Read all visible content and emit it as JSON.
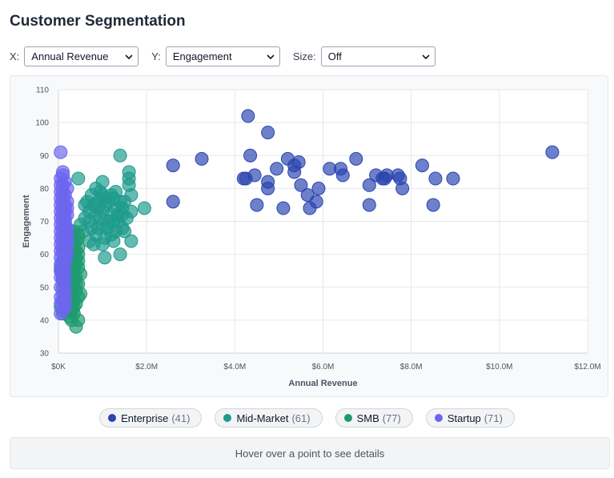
{
  "page": {
    "title": "Customer Segmentation"
  },
  "controls": {
    "x": {
      "label": "X:",
      "value": "Annual Revenue"
    },
    "y": {
      "label": "Y:",
      "value": "Engagement"
    },
    "size": {
      "label": "Size:",
      "value": "Off"
    }
  },
  "details": {
    "text": "Hover over a point to see details"
  },
  "colors": {
    "enterprise": "#2a44b0",
    "mid_market": "#1d9b8c",
    "smb": "#1e9b6e",
    "startup": "#6d65ef"
  },
  "legend": [
    {
      "name": "Enterprise",
      "count": "(41)",
      "color": "#2a44b0"
    },
    {
      "name": "Mid-Market",
      "count": "(61)",
      "color": "#1d9b8c"
    },
    {
      "name": "SMB",
      "count": "(77)",
      "color": "#1e9b6e"
    },
    {
      "name": "Startup",
      "count": "(71)",
      "color": "#6d65ef"
    }
  ],
  "chart_data": {
    "type": "scatter",
    "title": "",
    "xlabel": "Annual Revenue",
    "ylabel": "Engagement",
    "xlim": [
      0,
      12
    ],
    "ylim": [
      30,
      110
    ],
    "x_unit": "$M",
    "xticks": [
      "$0K",
      "$2.0M",
      "$4.0M",
      "$6.0M",
      "$8.0M",
      "$10.0M",
      "$12.0M"
    ],
    "yticks": [
      "30",
      "40",
      "50",
      "60",
      "70",
      "80",
      "90",
      "100",
      "110"
    ],
    "grid": true,
    "series": [
      {
        "name": "Enterprise",
        "color": "#2a44b0",
        "points": [
          [
            4.3,
            102
          ],
          [
            4.75,
            97
          ],
          [
            11.2,
            91
          ],
          [
            3.25,
            89
          ],
          [
            4.35,
            90
          ],
          [
            5.2,
            89
          ],
          [
            5.45,
            88
          ],
          [
            6.75,
            89
          ],
          [
            2.6,
            87
          ],
          [
            5.35,
            87
          ],
          [
            4.95,
            86
          ],
          [
            5.35,
            85
          ],
          [
            6.15,
            86
          ],
          [
            6.4,
            86
          ],
          [
            8.25,
            87
          ],
          [
            4.2,
            83
          ],
          [
            4.25,
            83
          ],
          [
            4.45,
            84
          ],
          [
            6.45,
            84
          ],
          [
            7.2,
            84
          ],
          [
            7.35,
            83
          ],
          [
            7.45,
            84
          ],
          [
            7.7,
            84
          ],
          [
            7.75,
            83
          ],
          [
            8.55,
            83
          ],
          [
            8.95,
            83
          ],
          [
            4.75,
            82
          ],
          [
            5.5,
            81
          ],
          [
            7.05,
            81
          ],
          [
            7.4,
            83
          ],
          [
            4.75,
            80
          ],
          [
            5.9,
            80
          ],
          [
            7.8,
            80
          ],
          [
            5.65,
            78
          ],
          [
            2.6,
            76
          ],
          [
            5.85,
            76
          ],
          [
            4.5,
            75
          ],
          [
            5.1,
            74
          ],
          [
            5.7,
            74
          ],
          [
            7.05,
            75
          ],
          [
            8.5,
            75
          ]
        ]
      },
      {
        "name": "Mid-Market",
        "color": "#1d9b8c",
        "points": [
          [
            1.4,
            90
          ],
          [
            1.6,
            85
          ],
          [
            1.6,
            83
          ],
          [
            1.6,
            81
          ],
          [
            0.45,
            83
          ],
          [
            1.0,
            82
          ],
          [
            0.85,
            80
          ],
          [
            0.95,
            79
          ],
          [
            1.3,
            79
          ],
          [
            1.2,
            78
          ],
          [
            1.65,
            78
          ],
          [
            1.05,
            77
          ],
          [
            1.4,
            76
          ],
          [
            0.65,
            76
          ],
          [
            0.8,
            75
          ],
          [
            0.9,
            74
          ],
          [
            1.05,
            75
          ],
          [
            1.15,
            76
          ],
          [
            1.3,
            74
          ],
          [
            1.45,
            74
          ],
          [
            1.65,
            73
          ],
          [
            1.95,
            74
          ],
          [
            0.7,
            73
          ],
          [
            0.85,
            72
          ],
          [
            1.0,
            73
          ],
          [
            1.2,
            72
          ],
          [
            1.45,
            72
          ],
          [
            0.6,
            71
          ],
          [
            0.95,
            71
          ],
          [
            1.25,
            70
          ],
          [
            1.55,
            71
          ],
          [
            0.5,
            69
          ],
          [
            0.75,
            68
          ],
          [
            1.0,
            69
          ],
          [
            1.35,
            70
          ],
          [
            1.45,
            68
          ],
          [
            0.55,
            67
          ],
          [
            0.85,
            66
          ],
          [
            1.1,
            68
          ],
          [
            1.3,
            67
          ],
          [
            1.5,
            67
          ],
          [
            0.45,
            65
          ],
          [
            0.7,
            64
          ],
          [
            1.05,
            65
          ],
          [
            1.25,
            64
          ],
          [
            1.65,
            64
          ],
          [
            0.8,
            63
          ],
          [
            1.0,
            63
          ],
          [
            1.4,
            60
          ],
          [
            1.05,
            59
          ],
          [
            0.6,
            75
          ],
          [
            0.7,
            70
          ],
          [
            0.9,
            68
          ],
          [
            1.15,
            70
          ],
          [
            1.35,
            72
          ],
          [
            0.75,
            78
          ],
          [
            1.0,
            78
          ],
          [
            1.25,
            77
          ],
          [
            1.5,
            76
          ],
          [
            0.9,
            76
          ],
          [
            1.2,
            66
          ]
        ]
      },
      {
        "name": "SMB",
        "color": "#1e9b6e",
        "points": [
          [
            0.25,
            67
          ],
          [
            0.35,
            67
          ],
          [
            0.45,
            66
          ],
          [
            0.3,
            65
          ],
          [
            0.4,
            64
          ],
          [
            0.2,
            63
          ],
          [
            0.35,
            63
          ],
          [
            0.45,
            62
          ],
          [
            0.25,
            61
          ],
          [
            0.4,
            61
          ],
          [
            0.15,
            60
          ],
          [
            0.3,
            60
          ],
          [
            0.45,
            60
          ],
          [
            0.2,
            59
          ],
          [
            0.35,
            58
          ],
          [
            0.1,
            58
          ],
          [
            0.25,
            57
          ],
          [
            0.4,
            57
          ],
          [
            0.15,
            56
          ],
          [
            0.3,
            56
          ],
          [
            0.45,
            56
          ],
          [
            0.05,
            55
          ],
          [
            0.2,
            55
          ],
          [
            0.35,
            55
          ],
          [
            0.5,
            54
          ],
          [
            0.1,
            54
          ],
          [
            0.25,
            53
          ],
          [
            0.4,
            53
          ],
          [
            0.15,
            52
          ],
          [
            0.3,
            52
          ],
          [
            0.45,
            51
          ],
          [
            0.2,
            51
          ],
          [
            0.35,
            50
          ],
          [
            0.1,
            50
          ],
          [
            0.25,
            49
          ],
          [
            0.4,
            49
          ],
          [
            0.15,
            48
          ],
          [
            0.3,
            48
          ],
          [
            0.5,
            48
          ],
          [
            0.2,
            47
          ],
          [
            0.35,
            46
          ],
          [
            0.1,
            46
          ],
          [
            0.25,
            45
          ],
          [
            0.4,
            45
          ],
          [
            0.15,
            44
          ],
          [
            0.3,
            44
          ],
          [
            0.2,
            43
          ],
          [
            0.35,
            42
          ],
          [
            0.1,
            42
          ],
          [
            0.25,
            41
          ],
          [
            0.3,
            40
          ],
          [
            0.4,
            38
          ],
          [
            0.45,
            40
          ],
          [
            0.05,
            44
          ],
          [
            0.2,
            62
          ],
          [
            0.3,
            58
          ],
          [
            0.1,
            52
          ],
          [
            0.25,
            65
          ],
          [
            0.35,
            61
          ],
          [
            0.15,
            49
          ],
          [
            0.4,
            59
          ],
          [
            0.2,
            54
          ],
          [
            0.3,
            50
          ],
          [
            0.25,
            47
          ],
          [
            0.35,
            53
          ],
          [
            0.45,
            47
          ],
          [
            0.15,
            58
          ],
          [
            0.3,
            43
          ],
          [
            0.2,
            66
          ],
          [
            0.4,
            51
          ],
          [
            0.1,
            61
          ],
          [
            0.25,
            55
          ],
          [
            0.35,
            44
          ],
          [
            0.05,
            56
          ],
          [
            0.45,
            58
          ],
          [
            0.3,
            62
          ],
          [
            0.2,
            45
          ]
        ]
      },
      {
        "name": "Startup",
        "color": "#6d65ef",
        "points": [
          [
            0.05,
            91
          ],
          [
            0.1,
            85
          ],
          [
            0.05,
            83
          ],
          [
            0.15,
            82
          ],
          [
            0.1,
            81
          ],
          [
            0.2,
            80
          ],
          [
            0.05,
            79
          ],
          [
            0.15,
            78
          ],
          [
            0.1,
            77
          ],
          [
            0.2,
            76
          ],
          [
            0.05,
            75
          ],
          [
            0.15,
            74
          ],
          [
            0.1,
            73
          ],
          [
            0.2,
            72
          ],
          [
            0.05,
            71
          ],
          [
            0.15,
            70
          ],
          [
            0.1,
            69
          ],
          [
            0.2,
            68
          ],
          [
            0.05,
            67
          ],
          [
            0.15,
            66
          ],
          [
            0.1,
            65
          ],
          [
            0.2,
            64
          ],
          [
            0.05,
            63
          ],
          [
            0.15,
            62
          ],
          [
            0.1,
            61
          ],
          [
            0.2,
            60
          ],
          [
            0.05,
            59
          ],
          [
            0.1,
            58
          ],
          [
            0.15,
            57
          ],
          [
            0.05,
            55
          ],
          [
            0.1,
            53
          ],
          [
            0.15,
            51
          ],
          [
            0.1,
            48
          ],
          [
            0.05,
            47
          ],
          [
            0.15,
            45
          ],
          [
            0.1,
            43
          ],
          [
            0.05,
            42
          ],
          [
            0.15,
            75
          ],
          [
            0.1,
            79
          ],
          [
            0.05,
            73
          ],
          [
            0.15,
            71
          ],
          [
            0.1,
            67
          ],
          [
            0.05,
            65
          ],
          [
            0.2,
            63
          ],
          [
            0.1,
            62
          ],
          [
            0.15,
            60
          ],
          [
            0.05,
            61
          ],
          [
            0.1,
            56
          ],
          [
            0.15,
            54
          ],
          [
            0.05,
            50
          ],
          [
            0.1,
            46
          ],
          [
            0.15,
            44
          ],
          [
            0.05,
            77
          ],
          [
            0.1,
            75
          ],
          [
            0.15,
            69
          ],
          [
            0.2,
            66
          ],
          [
            0.05,
            69
          ],
          [
            0.1,
            71
          ],
          [
            0.15,
            73
          ],
          [
            0.1,
            63
          ],
          [
            0.05,
            57
          ],
          [
            0.15,
            59
          ],
          [
            0.1,
            52
          ],
          [
            0.05,
            53
          ],
          [
            0.15,
            49
          ],
          [
            0.1,
            55
          ],
          [
            0.05,
            45
          ],
          [
            0.15,
            47
          ],
          [
            0.1,
            84
          ],
          [
            0.05,
            81
          ],
          [
            0.2,
            74
          ]
        ]
      }
    ]
  }
}
